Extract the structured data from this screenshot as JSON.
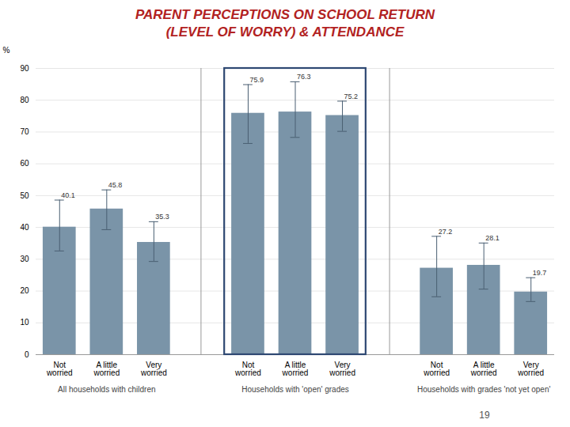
{
  "chart_data": {
    "type": "bar",
    "title": "PARENT PERCEPTIONS ON SCHOOL RETURN",
    "subtitle": "(LEVEL OF WORRY) & ATTENDANCE",
    "ylabel": "%",
    "color": "#7a94a8",
    "ylim": [
      0,
      90
    ],
    "yticks": [
      0,
      10,
      20,
      30,
      40,
      50,
      60,
      70,
      80,
      90
    ],
    "grid": true,
    "data_labels": true,
    "groups": [
      {
        "name": "All households with children",
        "categories": [
          "Not worried",
          "A little worried",
          "Very worried"
        ],
        "values": [
          40.1,
          45.8,
          35.3
        ],
        "errors_upper": [
          8.5,
          6.0,
          6.5
        ],
        "errors_lower": [
          7.5,
          6.5,
          6.0
        ]
      },
      {
        "name": "Households with 'open' grades",
        "categories": [
          "Not worried",
          "A little worried",
          "Very worried"
        ],
        "values": [
          75.9,
          76.3,
          75.2
        ],
        "errors_upper": [
          9.0,
          9.5,
          4.5
        ],
        "errors_lower": [
          9.5,
          8.0,
          5.0
        ]
      },
      {
        "name": "Households with grades 'not yet open'",
        "categories": [
          "Not worried",
          "A little worried",
          "Very worried"
        ],
        "values": [
          27.2,
          28.1,
          19.7
        ],
        "errors_upper": [
          10.0,
          7.0,
          4.5
        ],
        "errors_lower": [
          9.0,
          7.5,
          3.0
        ]
      }
    ],
    "annotations": [
      "19"
    ]
  }
}
